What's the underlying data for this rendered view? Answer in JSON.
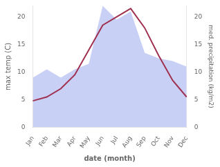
{
  "chart_data": {
    "type": "line",
    "categories": [
      "Jan",
      "Feb",
      "Mar",
      "Apr",
      "May",
      "Jun",
      "Jul",
      "Aug",
      "Sep",
      "Oct",
      "Nov",
      "Dec"
    ],
    "xlabel": "date (month)",
    "ylabel": "max temp (C)",
    "y2label": "med. precipitation (kg/m2)",
    "series": [
      {
        "type": "area",
        "color": "#c8d0f5",
        "axis": "y2",
        "values": [
          9.0,
          10.5,
          9.0,
          10.5,
          11.5,
          22.0,
          19.5,
          21.0,
          13.5,
          12.5,
          12.0,
          11.0
        ]
      },
      {
        "type": "line",
        "color": "#a03050",
        "values": [
          4.8,
          5.5,
          7.0,
          9.5,
          14.0,
          18.5,
          20.0,
          21.5,
          18.0,
          13.0,
          8.5,
          5.5
        ]
      }
    ],
    "ylim": [
      0,
      22
    ],
    "yticks": [
      0,
      5,
      10,
      15,
      20
    ],
    "y2lim": [
      0,
      22
    ],
    "y2ticks": [
      0,
      5,
      10,
      15,
      20
    ],
    "grid": false
  }
}
